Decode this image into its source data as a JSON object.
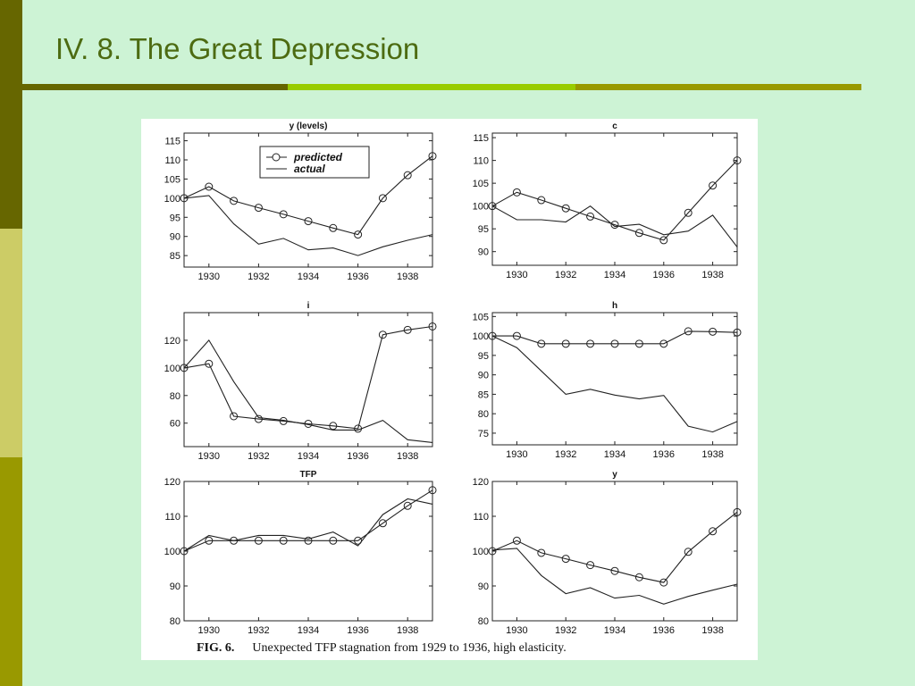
{
  "slide": {
    "title": "IV. 8. The Great Depression",
    "caption_label": "FIG. 6.",
    "caption_text": "Unexpected TFP stagnation from 1929 to 1936, high elasticity."
  },
  "colors": {
    "sidebar": [
      "#666600",
      "#cccc66",
      "#999900"
    ],
    "title": "#4d6b12",
    "background": "#cdf3d5"
  },
  "legend": {
    "predicted": "predicted",
    "actual": "actual",
    "placement": "top-right"
  },
  "chart_data": [
    {
      "type": "line",
      "title": "y (levels)",
      "x": [
        1929,
        1930,
        1931,
        1932,
        1933,
        1934,
        1935,
        1936,
        1937,
        1938,
        1939
      ],
      "xticks": [
        1930,
        1932,
        1934,
        1936,
        1938
      ],
      "yticks": [
        85,
        90,
        95,
        100,
        105,
        110,
        115
      ],
      "xlim": [
        1929,
        1939
      ],
      "ylim": [
        82,
        117
      ],
      "legend": true,
      "series": [
        {
          "name": "predicted",
          "values": [
            100,
            103,
            99.3,
            97.5,
            95.8,
            94,
            92.2,
            90.5,
            100,
            106,
            111
          ]
        },
        {
          "name": "actual",
          "values": [
            100,
            100.7,
            93.3,
            88,
            89.5,
            86.5,
            87,
            85,
            87.3,
            89,
            90.5
          ]
        }
      ]
    },
    {
      "type": "line",
      "title": "c",
      "x": [
        1929,
        1930,
        1931,
        1932,
        1933,
        1934,
        1935,
        1936,
        1937,
        1938,
        1939
      ],
      "xticks": [
        1930,
        1932,
        1934,
        1936,
        1938
      ],
      "yticks": [
        90,
        95,
        100,
        105,
        110,
        115
      ],
      "xlim": [
        1929,
        1939
      ],
      "ylim": [
        87,
        116
      ],
      "series": [
        {
          "name": "predicted",
          "values": [
            100,
            103,
            101.3,
            99.5,
            97.7,
            95.9,
            94.1,
            92.5,
            98.5,
            104.5,
            110
          ]
        },
        {
          "name": "actual",
          "values": [
            100,
            97,
            97,
            96.5,
            100,
            95.5,
            96,
            93.7,
            94.5,
            98,
            91
          ]
        }
      ]
    },
    {
      "type": "line",
      "title": "i",
      "x": [
        1929,
        1930,
        1931,
        1932,
        1933,
        1934,
        1935,
        1936,
        1937,
        1938,
        1939
      ],
      "xticks": [
        1930,
        1932,
        1934,
        1936,
        1938
      ],
      "yticks": [
        60,
        80,
        100,
        120
      ],
      "xlim": [
        1929,
        1939
      ],
      "ylim": [
        43,
        140
      ],
      "series": [
        {
          "name": "predicted",
          "values": [
            100,
            103,
            65,
            63,
            61.5,
            59.5,
            58,
            56,
            124,
            127.5,
            130
          ]
        },
        {
          "name": "actual",
          "values": [
            100,
            120,
            90,
            64,
            62,
            59,
            55,
            55,
            62,
            48,
            46
          ]
        }
      ]
    },
    {
      "type": "line",
      "title": "h",
      "x": [
        1929,
        1930,
        1931,
        1932,
        1933,
        1934,
        1935,
        1936,
        1937,
        1938,
        1939
      ],
      "xticks": [
        1930,
        1932,
        1934,
        1936,
        1938
      ],
      "yticks": [
        75,
        80,
        85,
        90,
        95,
        100,
        105
      ],
      "xlim": [
        1929,
        1939
      ],
      "ylim": [
        72,
        106
      ],
      "series": [
        {
          "name": "predicted",
          "values": [
            100,
            100,
            98,
            98,
            98,
            98,
            98,
            98,
            101.2,
            101.1,
            100.9
          ]
        },
        {
          "name": "actual",
          "values": [
            100,
            97,
            91,
            85,
            86.3,
            84.8,
            83.8,
            84.7,
            76.8,
            75.3,
            78
          ]
        }
      ]
    },
    {
      "type": "line",
      "title": "TFP",
      "x": [
        1929,
        1930,
        1931,
        1932,
        1933,
        1934,
        1935,
        1936,
        1937,
        1938,
        1939
      ],
      "xticks": [
        1930,
        1932,
        1934,
        1936,
        1938
      ],
      "yticks": [
        80,
        90,
        100,
        110,
        120
      ],
      "xlim": [
        1929,
        1939
      ],
      "ylim": [
        80,
        120
      ],
      "series": [
        {
          "name": "predicted",
          "values": [
            100,
            103,
            103,
            103,
            103,
            103,
            103,
            103,
            108,
            113,
            117.5
          ]
        },
        {
          "name": "actual",
          "values": [
            100,
            104.5,
            103,
            104.5,
            104.5,
            103.5,
            105.5,
            101.5,
            110.5,
            115,
            113.5
          ]
        }
      ]
    },
    {
      "type": "line",
      "title": "y",
      "x": [
        1929,
        1930,
        1931,
        1932,
        1933,
        1934,
        1935,
        1936,
        1937,
        1938,
        1939
      ],
      "xticks": [
        1930,
        1932,
        1934,
        1936,
        1938
      ],
      "yticks": [
        80,
        90,
        100,
        110,
        120
      ],
      "xlim": [
        1929,
        1939
      ],
      "ylim": [
        80,
        120
      ],
      "series": [
        {
          "name": "predicted",
          "values": [
            100,
            103,
            99.5,
            97.8,
            96,
            94.3,
            92.5,
            91,
            99.8,
            105.7,
            111.2
          ]
        },
        {
          "name": "actual",
          "values": [
            100.3,
            100.8,
            93,
            87.8,
            89.5,
            86.5,
            87.3,
            84.8,
            87,
            88.8,
            90.5
          ]
        }
      ]
    }
  ]
}
